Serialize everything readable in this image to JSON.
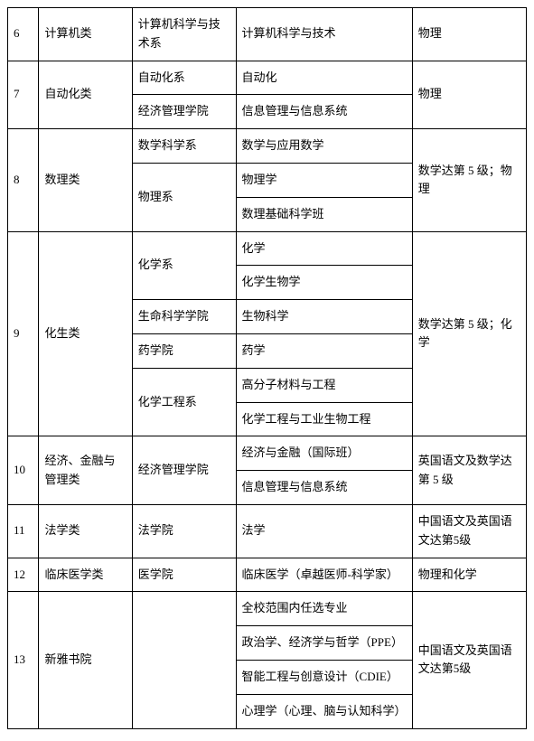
{
  "table": {
    "background_color": "#ffffff",
    "border_color": "#000000",
    "text_color": "#000000",
    "font_size": 13,
    "font_family": "SimSun",
    "columns": [
      {
        "key": "num",
        "width": "6%"
      },
      {
        "key": "category",
        "width": "18%"
      },
      {
        "key": "department",
        "width": "20%"
      },
      {
        "key": "major",
        "width": "34%"
      },
      {
        "key": "requirement",
        "width": "22%"
      }
    ],
    "rows": [
      {
        "num": "6",
        "category": "计算机类",
        "department": "计算机科学与技术系",
        "majors": [
          "计算机科学与技术"
        ],
        "requirement": "物理"
      },
      {
        "num": "7",
        "category": "自动化类",
        "departments": [
          {
            "name": "自动化系",
            "majors": [
              "自动化"
            ]
          },
          {
            "name": "经济管理学院",
            "majors": [
              "信息管理与信息系统"
            ]
          }
        ],
        "requirement": "物理"
      },
      {
        "num": "8",
        "category": "数理类",
        "departments": [
          {
            "name": "数学科学系",
            "majors": [
              "数学与应用数学"
            ]
          },
          {
            "name": "物理系",
            "majors": [
              "物理学",
              "数理基础科学班"
            ]
          }
        ],
        "requirement": "数学达第 5 级；物理"
      },
      {
        "num": "9",
        "category": "化生类",
        "departments": [
          {
            "name": "化学系",
            "majors": [
              "化学",
              "化学生物学"
            ]
          },
          {
            "name": "生命科学学院",
            "majors": [
              "生物科学"
            ]
          },
          {
            "name": "药学院",
            "majors": [
              "药学"
            ]
          },
          {
            "name": "化学工程系",
            "majors": [
              "高分子材料与工程",
              "化学工程与工业生物工程"
            ]
          }
        ],
        "requirement": "数学达第 5 级；化学"
      },
      {
        "num": "10",
        "category": "经济、金融与管理类",
        "departments": [
          {
            "name": "经济管理学院",
            "majors": [
              "经济与金融（国际班）",
              "信息管理与信息系统"
            ]
          }
        ],
        "requirement": "英国语文及数学达第 5 级"
      },
      {
        "num": "11",
        "category": "法学类",
        "department": "法学院",
        "majors": [
          "法学"
        ],
        "requirement": "中国语文及英国语文达第5级"
      },
      {
        "num": "12",
        "category": "临床医学类",
        "department": "医学院",
        "majors": [
          "临床医学（卓越医师-科学家）"
        ],
        "requirement": "物理和化学"
      },
      {
        "num": "13",
        "category": "新雅书院",
        "department": "",
        "majors": [
          "全校范围内任选专业",
          "政治学、经济学与哲学（PPE）",
          "智能工程与创意设计（CDIE）",
          "心理学（心理、脑与认知科学）"
        ],
        "requirement": "中国语文及英国语文达第5级"
      }
    ]
  }
}
